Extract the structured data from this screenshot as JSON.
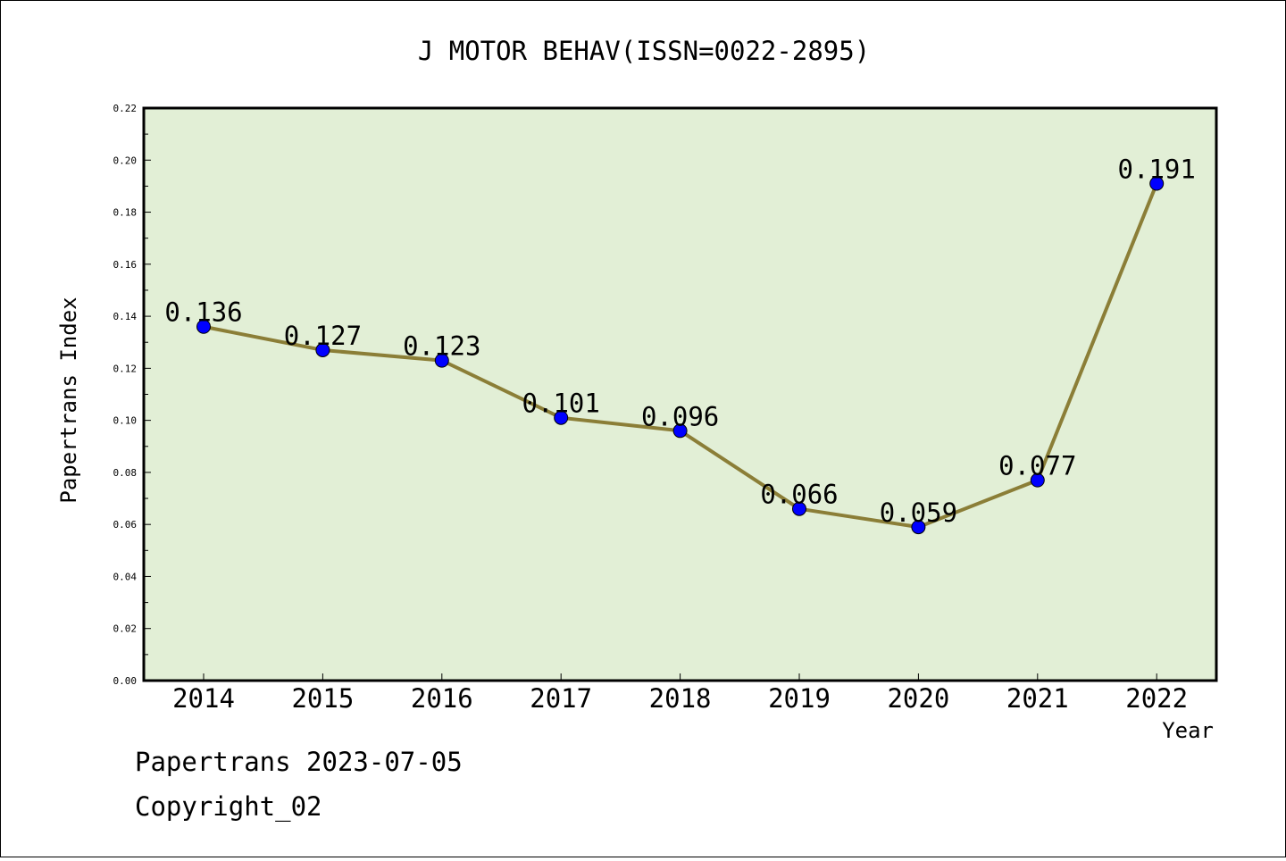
{
  "chart_data": {
    "type": "line",
    "title": "J MOTOR BEHAV(ISSN=0022-2895)",
    "xlabel": "Year",
    "ylabel": "Papertrans Index",
    "categories": [
      "2014",
      "2015",
      "2016",
      "2017",
      "2018",
      "2019",
      "2020",
      "2021",
      "2022"
    ],
    "values": [
      0.136,
      0.127,
      0.123,
      0.101,
      0.096,
      0.066,
      0.059,
      0.077,
      0.191
    ],
    "data_labels": [
      "0.136",
      "0.127",
      "0.123",
      "0.101",
      "0.096",
      "0.066",
      "0.059",
      "0.077",
      "0.191"
    ],
    "ylim": [
      0,
      0.22
    ],
    "yticks": [
      "0.00",
      "0.02",
      "0.04",
      "0.06",
      "0.08",
      "0.10",
      "0.12",
      "0.14",
      "0.16",
      "0.18",
      "0.20",
      "0.22"
    ],
    "grid": false,
    "colors": {
      "plot_background": "#e2efd6",
      "line": "#8b7e37",
      "marker": "#0000ff"
    }
  },
  "footer": {
    "date_line": "Papertrans 2023-07-05",
    "copyright": "Copyright_02"
  }
}
